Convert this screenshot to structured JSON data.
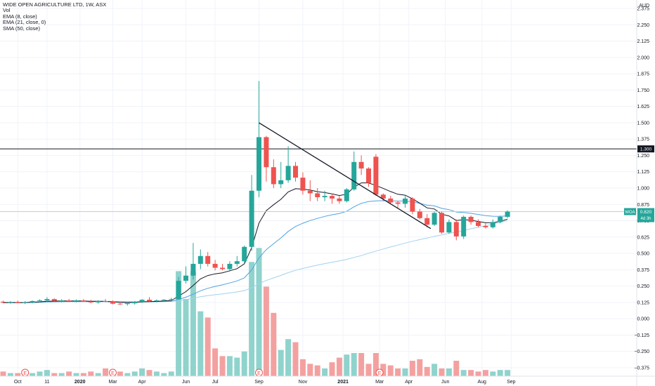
{
  "chart_data": {
    "type": "candlestick",
    "title": "WIDE OPEN AGRICULTURE LTD, 1W, ASX",
    "indicators": [
      "Vol",
      "EMA (8, close)",
      "EMA (21, close, 0)",
      "SMA (50, close)"
    ],
    "indicator_lines": {
      "ema8": "EMA (8, close)",
      "vol": "Vol",
      "ema21": "EMA (21, close, 0)",
      "sma50": "SMA (50, close)"
    },
    "currency": "AUD",
    "ylim": [
      -0.44,
      2.44
    ],
    "y_ticks": [
      {
        "v": 2.375,
        "t": "2.375"
      },
      {
        "v": 2.25,
        "t": "2.250"
      },
      {
        "v": 2.125,
        "t": "2.125"
      },
      {
        "v": 2.0,
        "t": "2.000"
      },
      {
        "v": 1.875,
        "t": "1.875"
      },
      {
        "v": 1.75,
        "t": "1.750"
      },
      {
        "v": 1.625,
        "t": "1.625"
      },
      {
        "v": 1.5,
        "t": "1.500"
      },
      {
        "v": 1.375,
        "t": "1.375"
      },
      {
        "v": 1.25,
        "t": "1.250"
      },
      {
        "v": 1.125,
        "t": "1.125"
      },
      {
        "v": 1.0,
        "t": "1.000"
      },
      {
        "v": 0.875,
        "t": "0.875"
      },
      {
        "v": 0.75,
        "t": "0.750"
      },
      {
        "v": 0.625,
        "t": "0.625"
      },
      {
        "v": 0.5,
        "t": "0.500"
      },
      {
        "v": 0.375,
        "t": "0.375"
      },
      {
        "v": 0.25,
        "t": "0.250"
      },
      {
        "v": 0.125,
        "t": "0.125"
      },
      {
        "v": 0.0,
        "t": "0.000"
      },
      {
        "v": -0.125,
        "t": "−0.125"
      },
      {
        "v": -0.25,
        "t": "−0.250"
      },
      {
        "v": -0.375,
        "t": "−0.375"
      }
    ],
    "x_ticks": [
      {
        "i": 2,
        "t": "Oct"
      },
      {
        "i": 6,
        "t": "11"
      },
      {
        "i": 10.5,
        "t": "2020"
      },
      {
        "i": 15,
        "t": "Mar"
      },
      {
        "i": 19,
        "t": "Apr"
      },
      {
        "i": 25,
        "t": "Jun"
      },
      {
        "i": 29,
        "t": "Jul"
      },
      {
        "i": 35,
        "t": "Sep"
      },
      {
        "i": 41,
        "t": "Nov"
      },
      {
        "i": 46.5,
        "t": "2021"
      },
      {
        "i": 51.5,
        "t": "Mar"
      },
      {
        "i": 55.5,
        "t": "Apr"
      },
      {
        "i": 60.5,
        "t": "Jun"
      },
      {
        "i": 65.5,
        "t": "Aug"
      },
      {
        "i": 69.5,
        "t": "Sep"
      }
    ],
    "bold_x_ticks": [
      "2020",
      "2021"
    ],
    "candles": [
      {
        "o": 0.13,
        "h": 0.138,
        "l": 0.118,
        "c": 0.123
      },
      {
        "o": 0.123,
        "h": 0.135,
        "l": 0.115,
        "c": 0.128
      },
      {
        "o": 0.128,
        "h": 0.138,
        "l": 0.118,
        "c": 0.12
      },
      {
        "o": 0.12,
        "h": 0.135,
        "l": 0.112,
        "c": 0.125
      },
      {
        "o": 0.125,
        "h": 0.14,
        "l": 0.118,
        "c": 0.135
      },
      {
        "o": 0.135,
        "h": 0.148,
        "l": 0.125,
        "c": 0.14
      },
      {
        "o": 0.14,
        "h": 0.165,
        "l": 0.132,
        "c": 0.15
      },
      {
        "o": 0.15,
        "h": 0.155,
        "l": 0.13,
        "c": 0.138
      },
      {
        "o": 0.138,
        "h": 0.15,
        "l": 0.125,
        "c": 0.14
      },
      {
        "o": 0.14,
        "h": 0.152,
        "l": 0.128,
        "c": 0.135
      },
      {
        "o": 0.135,
        "h": 0.148,
        "l": 0.125,
        "c": 0.14
      },
      {
        "o": 0.14,
        "h": 0.15,
        "l": 0.128,
        "c": 0.132
      },
      {
        "o": 0.132,
        "h": 0.145,
        "l": 0.118,
        "c": 0.125
      },
      {
        "o": 0.125,
        "h": 0.142,
        "l": 0.115,
        "c": 0.135
      },
      {
        "o": 0.135,
        "h": 0.15,
        "l": 0.125,
        "c": 0.13
      },
      {
        "o": 0.13,
        "h": 0.14,
        "l": 0.11,
        "c": 0.115
      },
      {
        "o": 0.115,
        "h": 0.13,
        "l": 0.105,
        "c": 0.112
      },
      {
        "o": 0.112,
        "h": 0.125,
        "l": 0.1,
        "c": 0.118
      },
      {
        "o": 0.118,
        "h": 0.135,
        "l": 0.108,
        "c": 0.13
      },
      {
        "o": 0.13,
        "h": 0.15,
        "l": 0.12,
        "c": 0.145
      },
      {
        "o": 0.145,
        "h": 0.165,
        "l": 0.13,
        "c": 0.135
      },
      {
        "o": 0.135,
        "h": 0.148,
        "l": 0.125,
        "c": 0.14
      },
      {
        "o": 0.14,
        "h": 0.15,
        "l": 0.13,
        "c": 0.145
      },
      {
        "o": 0.145,
        "h": 0.16,
        "l": 0.135,
        "c": 0.15
      },
      {
        "o": 0.15,
        "h": 0.32,
        "l": 0.145,
        "c": 0.29
      },
      {
        "o": 0.29,
        "h": 0.4,
        "l": 0.27,
        "c": 0.33
      },
      {
        "o": 0.33,
        "h": 0.58,
        "l": 0.3,
        "c": 0.42
      },
      {
        "o": 0.42,
        "h": 0.53,
        "l": 0.38,
        "c": 0.48
      },
      {
        "o": 0.48,
        "h": 0.51,
        "l": 0.4,
        "c": 0.42
      },
      {
        "o": 0.42,
        "h": 0.45,
        "l": 0.37,
        "c": 0.39
      },
      {
        "o": 0.39,
        "h": 0.42,
        "l": 0.37,
        "c": 0.38
      },
      {
        "o": 0.38,
        "h": 0.44,
        "l": 0.36,
        "c": 0.42
      },
      {
        "o": 0.42,
        "h": 0.48,
        "l": 0.4,
        "c": 0.44
      },
      {
        "o": 0.44,
        "h": 0.56,
        "l": 0.43,
        "c": 0.55
      },
      {
        "o": 0.55,
        "h": 1.1,
        "l": 0.52,
        "c": 0.98
      },
      {
        "o": 0.98,
        "h": 1.82,
        "l": 0.93,
        "c": 1.39
      },
      {
        "o": 1.39,
        "h": 1.4,
        "l": 1.05,
        "c": 1.16
      },
      {
        "o": 1.16,
        "h": 1.22,
        "l": 1.0,
        "c": 1.03
      },
      {
        "o": 1.03,
        "h": 1.2,
        "l": 1.0,
        "c": 1.06
      },
      {
        "o": 1.06,
        "h": 1.32,
        "l": 1.04,
        "c": 1.17
      },
      {
        "o": 1.17,
        "h": 1.2,
        "l": 1.05,
        "c": 1.08
      },
      {
        "o": 1.08,
        "h": 1.12,
        "l": 0.95,
        "c": 0.98
      },
      {
        "o": 0.98,
        "h": 1.06,
        "l": 0.9,
        "c": 0.96
      },
      {
        "o": 0.96,
        "h": 1.0,
        "l": 0.9,
        "c": 0.93
      },
      {
        "o": 0.93,
        "h": 0.98,
        "l": 0.9,
        "c": 0.94
      },
      {
        "o": 0.94,
        "h": 0.96,
        "l": 0.88,
        "c": 0.92
      },
      {
        "o": 0.92,
        "h": 0.94,
        "l": 0.88,
        "c": 0.9
      },
      {
        "o": 0.9,
        "h": 1.0,
        "l": 0.89,
        "c": 0.99
      },
      {
        "o": 0.99,
        "h": 1.28,
        "l": 0.98,
        "c": 1.2
      },
      {
        "o": 1.2,
        "h": 1.25,
        "l": 1.1,
        "c": 1.15
      },
      {
        "o": 1.15,
        "h": 1.16,
        "l": 1.01,
        "c": 1.04
      },
      {
        "o": 1.24,
        "h": 1.26,
        "l": 0.94,
        "c": 0.95
      },
      {
        "o": 0.95,
        "h": 0.96,
        "l": 0.9,
        "c": 0.92
      },
      {
        "o": 0.92,
        "h": 0.94,
        "l": 0.88,
        "c": 0.89
      },
      {
        "o": 0.89,
        "h": 0.9,
        "l": 0.85,
        "c": 0.88
      },
      {
        "o": 0.88,
        "h": 0.94,
        "l": 0.85,
        "c": 0.92
      },
      {
        "o": 0.92,
        "h": 0.93,
        "l": 0.8,
        "c": 0.82
      },
      {
        "o": 0.82,
        "h": 0.84,
        "l": 0.76,
        "c": 0.77
      },
      {
        "o": 0.77,
        "h": 0.8,
        "l": 0.7,
        "c": 0.72
      },
      {
        "o": 0.72,
        "h": 0.82,
        "l": 0.71,
        "c": 0.81
      },
      {
        "o": 0.81,
        "h": 0.82,
        "l": 0.65,
        "c": 0.66
      },
      {
        "o": 0.66,
        "h": 0.76,
        "l": 0.65,
        "c": 0.74
      },
      {
        "o": 0.74,
        "h": 0.76,
        "l": 0.6,
        "c": 0.63
      },
      {
        "o": 0.63,
        "h": 0.79,
        "l": 0.61,
        "c": 0.78
      },
      {
        "o": 0.78,
        "h": 0.79,
        "l": 0.72,
        "c": 0.74
      },
      {
        "o": 0.74,
        "h": 0.76,
        "l": 0.7,
        "c": 0.71
      },
      {
        "o": 0.71,
        "h": 0.73,
        "l": 0.69,
        "c": 0.7
      },
      {
        "o": 0.7,
        "h": 0.76,
        "l": 0.69,
        "c": 0.74
      },
      {
        "o": 0.74,
        "h": 0.79,
        "l": 0.73,
        "c": 0.78
      },
      {
        "o": 0.78,
        "h": 0.83,
        "l": 0.77,
        "c": 0.82
      }
    ],
    "volume_levels": [
      0.03,
      0.02,
      0.02,
      0.03,
      0.02,
      0.03,
      0.04,
      0.02,
      0.02,
      0.03,
      0.02,
      0.02,
      0.03,
      0.02,
      0.05,
      0.04,
      0.03,
      0.02,
      0.03,
      0.05,
      0.04,
      0.03,
      0.02,
      0.03,
      0.68,
      0.5,
      0.68,
      0.42,
      0.38,
      0.18,
      0.13,
      0.13,
      0.12,
      0.16,
      0.74,
      0.83,
      0.58,
      0.41,
      0.17,
      0.24,
      0.22,
      0.11,
      0.08,
      0.07,
      0.05,
      0.09,
      0.12,
      0.14,
      0.15,
      0.15,
      0.08,
      0.15,
      0.08,
      0.07,
      0.05,
      0.05,
      0.1,
      0.11,
      0.06,
      0.08,
      0.05,
      0.05,
      0.1,
      0.04,
      0.04,
      0.03,
      0.04,
      0.03,
      0.04,
      0.04
    ],
    "earnings_markers": [
      3,
      15,
      35,
      51.5
    ],
    "earnings_marker_label": "E",
    "horizontal_line": {
      "value": 1.3,
      "label": "1.300"
    },
    "last_price": {
      "value": 0.82,
      "label": "0.820",
      "symbol": "WOA",
      "countdown": "4d 3h"
    },
    "trendline": {
      "from": {
        "i": 35,
        "v": 1.5
      },
      "to": {
        "i": 58.5,
        "v": 0.69
      }
    },
    "colors": {
      "up": "#26a69a",
      "down": "#ef5350",
      "vol_up": "#8fd3cc",
      "vol_down": "#f3a1a0",
      "ema8": "#131722",
      "ema21": "#4fa3e0",
      "sma50": "#9fd3ee",
      "grid": "#f0f3fa",
      "last_price_line": "#a8dcd4",
      "hline": "#131722",
      "earnings": "#ef5350"
    }
  }
}
